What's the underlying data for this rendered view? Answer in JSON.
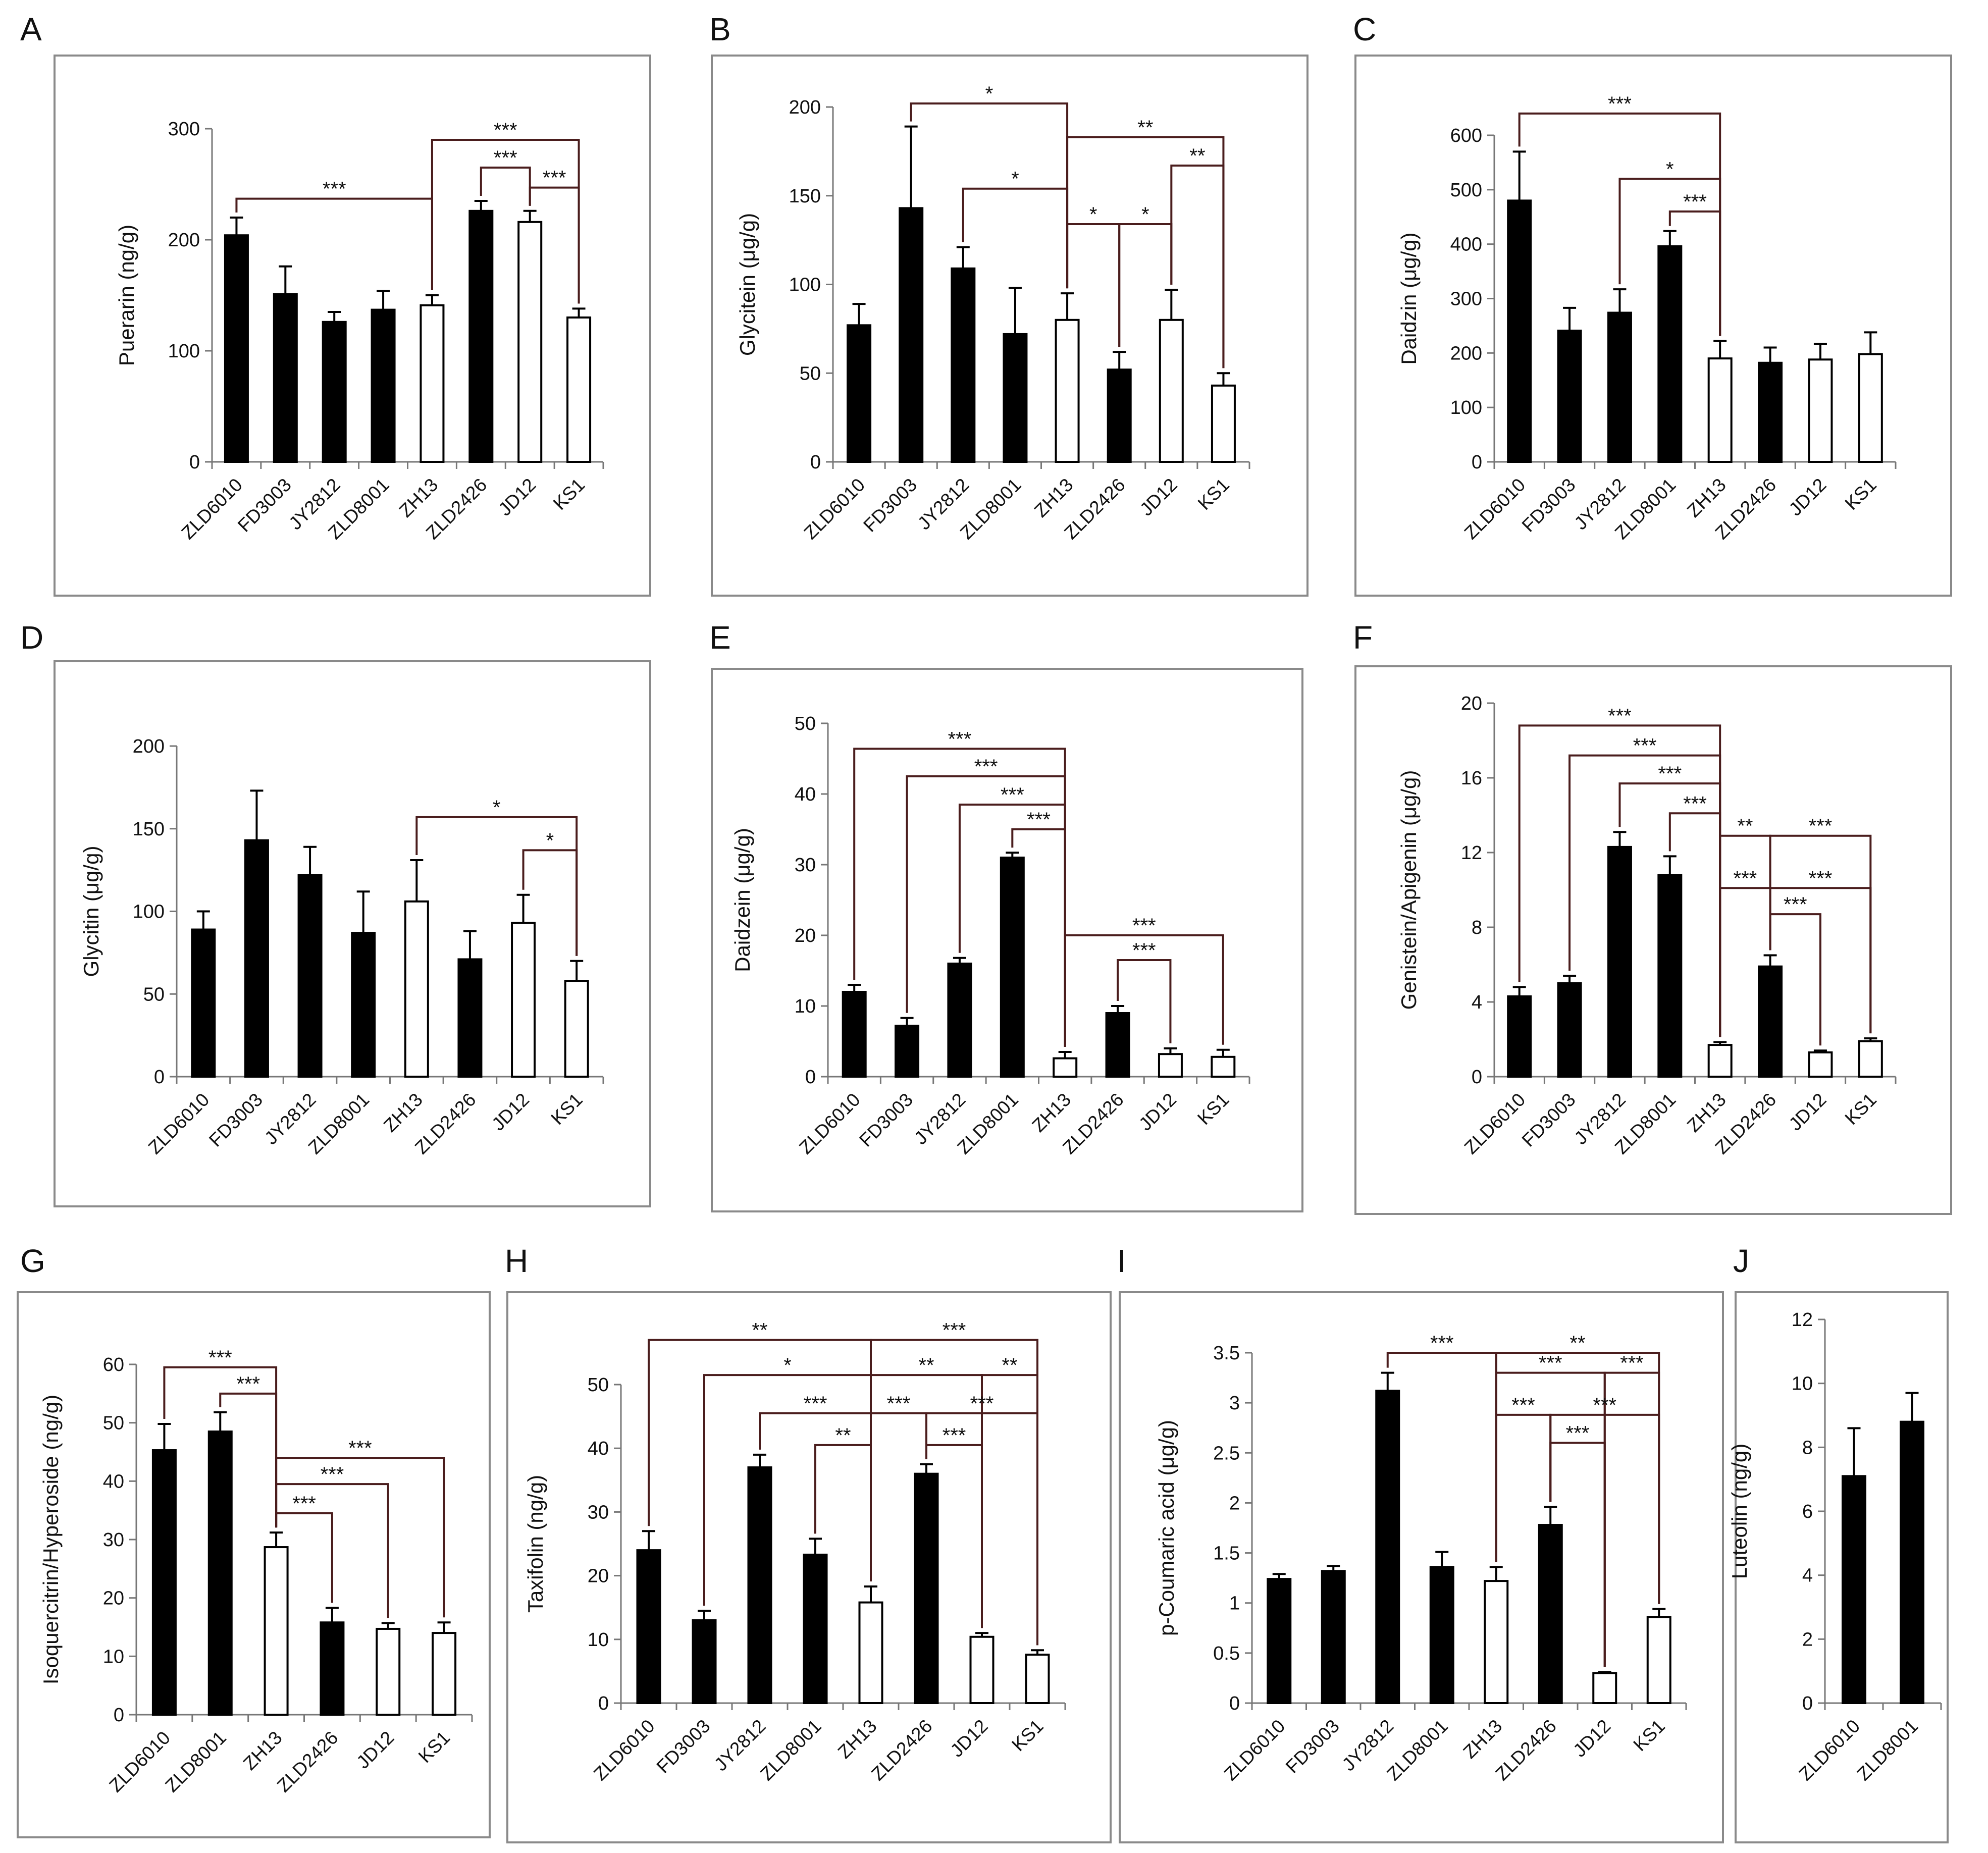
{
  "colors": {
    "filled": "#000000",
    "open": "#ffffff",
    "frame": "#8a8a8a",
    "bracket": "#4a1d1d"
  },
  "chart_data": [
    {
      "panel": "A",
      "type": "bar",
      "ylabel": "Puerarin (ng/g)",
      "ylim": [
        0,
        300
      ],
      "yticks": [
        0,
        100,
        200,
        300
      ],
      "categories": [
        "ZLD6010",
        "FD3003",
        "JY2812",
        "ZLD8001",
        "ZH13",
        "ZLD2426",
        "JD12",
        "KS1"
      ],
      "values": [
        204,
        151,
        126,
        137,
        141,
        226,
        216,
        130
      ],
      "errors": [
        16,
        25,
        9,
        17,
        9,
        9,
        10,
        8
      ],
      "filled": [
        true,
        true,
        true,
        true,
        false,
        true,
        false,
        false
      ],
      "annotations": [
        {
          "label": "***",
          "x1": 0,
          "x2": 4,
          "y": 237
        },
        {
          "label": "***",
          "x1": 4,
          "x2": 7,
          "y": 290
        },
        {
          "label": "***",
          "x1": 5,
          "x2": 6,
          "y": 265
        },
        {
          "label": "***",
          "x1": 6,
          "x2": 7,
          "y": 247
        }
      ]
    },
    {
      "panel": "B",
      "type": "bar",
      "ylabel": "Glycitein (μg/g)",
      "ylim": [
        0,
        200
      ],
      "yticks": [
        0,
        50,
        100,
        150,
        200
      ],
      "categories": [
        "ZLD6010",
        "FD3003",
        "JY2812",
        "ZLD8001",
        "ZH13",
        "ZLD2426",
        "JD12",
        "KS1"
      ],
      "values": [
        77,
        143,
        109,
        72,
        80,
        52,
        80,
        43
      ],
      "errors": [
        12,
        46,
        12,
        26,
        15,
        10,
        17,
        7
      ],
      "filled": [
        true,
        true,
        true,
        true,
        false,
        true,
        false,
        false
      ],
      "annotations": [
        {
          "label": "*",
          "x1": 1,
          "x2": 4,
          "y": 202
        },
        {
          "label": "**",
          "x1": 4,
          "x2": 7,
          "y": 183
        },
        {
          "label": "*",
          "x1": 2,
          "x2": 4,
          "y": 154
        },
        {
          "label": "**",
          "x1": 6,
          "x2": 7,
          "y": 167
        },
        {
          "label": "*",
          "x1": 4,
          "x2": 5,
          "y": 134
        },
        {
          "label": "*",
          "x1": 5,
          "x2": 6,
          "y": 134
        }
      ]
    },
    {
      "panel": "C",
      "type": "bar",
      "ylabel": "Daidzin (μg/g)",
      "ylim": [
        0,
        600
      ],
      "yticks": [
        0,
        100,
        200,
        300,
        400,
        500,
        600
      ],
      "categories": [
        "ZLD6010",
        "FD3003",
        "JY2812",
        "ZLD8001",
        "ZH13",
        "ZLD2426",
        "JD12",
        "KS1"
      ],
      "values": [
        480,
        241,
        274,
        396,
        190,
        182,
        188,
        198
      ],
      "errors": [
        90,
        42,
        43,
        28,
        32,
        28,
        29,
        40
      ],
      "filled": [
        true,
        true,
        true,
        true,
        false,
        true,
        false,
        false
      ],
      "annotations": [
        {
          "label": "***",
          "x1": 0,
          "x2": 4,
          "y": 640
        },
        {
          "label": "*",
          "x1": 2,
          "x2": 4,
          "y": 520
        },
        {
          "label": "***",
          "x1": 3,
          "x2": 4,
          "y": 460
        }
      ]
    },
    {
      "panel": "D",
      "type": "bar",
      "ylabel": "Glycitin (μg/g)",
      "ylim": [
        0,
        200
      ],
      "yticks": [
        0,
        50,
        100,
        150,
        200
      ],
      "categories": [
        "ZLD6010",
        "FD3003",
        "JY2812",
        "ZLD8001",
        "ZH13",
        "ZLD2426",
        "JD12",
        "KS1"
      ],
      "values": [
        89,
        143,
        122,
        87,
        106,
        71,
        93,
        58
      ],
      "errors": [
        11,
        30,
        17,
        25,
        25,
        17,
        17,
        12
      ],
      "filled": [
        true,
        true,
        true,
        true,
        false,
        true,
        false,
        false
      ],
      "annotations": [
        {
          "label": "*",
          "x1": 4,
          "x2": 7,
          "y": 157
        },
        {
          "label": "*",
          "x1": 6,
          "x2": 7,
          "y": 137
        }
      ]
    },
    {
      "panel": "E",
      "type": "bar",
      "ylabel": "Daidzein (μg/g)",
      "ylim": [
        0,
        50
      ],
      "yticks": [
        0,
        10,
        20,
        30,
        40,
        50
      ],
      "categories": [
        "ZLD6010",
        "FD3003",
        "JY2812",
        "ZLD8001",
        "ZH13",
        "ZLD2426",
        "JD12",
        "KS1"
      ],
      "values": [
        12,
        7.2,
        16,
        31,
        2.6,
        9,
        3.2,
        2.8
      ],
      "errors": [
        1,
        1.1,
        0.8,
        0.7,
        0.9,
        1,
        0.8,
        1
      ],
      "filled": [
        true,
        true,
        true,
        true,
        false,
        true,
        false,
        false
      ],
      "annotations": [
        {
          "label": "***",
          "x1": 0,
          "x2": 4,
          "y": 46.4
        },
        {
          "label": "***",
          "x1": 1,
          "x2": 4,
          "y": 42.5
        },
        {
          "label": "***",
          "x1": 2,
          "x2": 4,
          "y": 38.5
        },
        {
          "label": "***",
          "x1": 3,
          "x2": 4,
          "y": 35
        },
        {
          "label": "***",
          "x1": 4,
          "x2": 7,
          "y": 20
        },
        {
          "label": "***",
          "x1": 5,
          "x2": 6,
          "y": 16.5
        }
      ]
    },
    {
      "panel": "F",
      "type": "bar",
      "ylabel": "Genistein/Apigenin (μg/g)",
      "ylim": [
        0,
        20
      ],
      "yticks": [
        0,
        4,
        8,
        12,
        16,
        20
      ],
      "categories": [
        "ZLD6010",
        "FD3003",
        "JY2812",
        "ZLD8001",
        "ZH13",
        "ZLD2426",
        "JD12",
        "KS1"
      ],
      "values": [
        4.3,
        5,
        12.3,
        10.8,
        1.7,
        5.9,
        1.3,
        1.9
      ],
      "errors": [
        0.5,
        0.4,
        0.8,
        1,
        0.15,
        0.6,
        0.1,
        0.15
      ],
      "filled": [
        true,
        true,
        true,
        true,
        false,
        true,
        false,
        false
      ],
      "annotations": [
        {
          "label": "***",
          "x1": 0,
          "x2": 4,
          "y": 18.8
        },
        {
          "label": "***",
          "x1": 1,
          "x2": 4,
          "y": 17.2
        },
        {
          "label": "***",
          "x1": 2,
          "x2": 4,
          "y": 15.7
        },
        {
          "label": "***",
          "x1": 3,
          "x2": 4,
          "y": 14.1
        },
        {
          "label": "**",
          "x1": 4,
          "x2": 5,
          "y": 12.9
        },
        {
          "label": "***",
          "x1": 5,
          "x2": 7,
          "y": 12.9
        },
        {
          "label": "***",
          "x1": 4,
          "x2": 5,
          "y": 10.1
        },
        {
          "label": "***",
          "x1": 5,
          "x2": 7,
          "y": 10.1
        },
        {
          "label": "***",
          "x1": 5,
          "x2": 6,
          "y": 8.7
        }
      ]
    },
    {
      "panel": "G",
      "type": "bar",
      "ylabel": "Isoquercitrin/Hyperoside (ng/g)",
      "ylim": [
        0,
        60
      ],
      "yticks": [
        0,
        10,
        20,
        30,
        40,
        50,
        60
      ],
      "categories": [
        "ZLD6010",
        "ZLD8001",
        "ZH13",
        "ZLD2426",
        "JD12",
        "KS1"
      ],
      "values": [
        45.3,
        48.5,
        28.7,
        15.8,
        14.7,
        14
      ],
      "errors": [
        4.5,
        3.3,
        2.5,
        2.5,
        1,
        1.8
      ],
      "filled": [
        true,
        true,
        false,
        true,
        false,
        false
      ],
      "annotations": [
        {
          "label": "***",
          "x1": 0,
          "x2": 2,
          "y": 59.5
        },
        {
          "label": "***",
          "x1": 1,
          "x2": 2,
          "y": 55
        },
        {
          "label": "***",
          "x1": 2,
          "x2": 5,
          "y": 44
        },
        {
          "label": "***",
          "x1": 2,
          "x2": 4,
          "y": 39.5
        },
        {
          "label": "***",
          "x1": 2,
          "x2": 3,
          "y": 34.5
        }
      ]
    },
    {
      "panel": "H",
      "type": "bar",
      "ylabel": "Taxifolin (ng/g)",
      "ylim": [
        0,
        50
      ],
      "yticks": [
        0,
        10,
        20,
        30,
        40,
        50
      ],
      "categories": [
        "ZLD6010",
        "FD3003",
        "JY2812",
        "ZLD8001",
        "ZH13",
        "ZLD2426",
        "JD12",
        "KS1"
      ],
      "values": [
        24,
        13,
        37,
        23.3,
        15.8,
        36,
        10.4,
        7.6
      ],
      "errors": [
        3,
        1.5,
        2,
        2.5,
        2.5,
        1.5,
        0.6,
        0.7
      ],
      "filled": [
        true,
        true,
        true,
        true,
        false,
        true,
        false,
        false
      ],
      "annotations": [
        {
          "label": "**",
          "x1": 0,
          "x2": 4,
          "y": 57
        },
        {
          "label": "***",
          "x1": 4,
          "x2": 7,
          "y": 57
        },
        {
          "label": "*",
          "x1": 1,
          "x2": 4,
          "y": 51.5
        },
        {
          "label": "**",
          "x1": 4,
          "x2": 6,
          "y": 51.5
        },
        {
          "label": "**",
          "x1": 6,
          "x2": 7,
          "y": 51.5
        },
        {
          "label": "***",
          "x1": 2,
          "x2": 4,
          "y": 45.5
        },
        {
          "label": "***",
          "x1": 4,
          "x2": 5,
          "y": 45.5
        },
        {
          "label": "***",
          "x1": 5,
          "x2": 7,
          "y": 45.5
        },
        {
          "label": "**",
          "x1": 3,
          "x2": 4,
          "y": 40.5
        },
        {
          "label": "***",
          "x1": 5,
          "x2": 6,
          "y": 40.5
        }
      ]
    },
    {
      "panel": "I",
      "type": "bar",
      "ylabel": "p-Coumaric acid (μg/g)",
      "ylim": [
        0,
        3.5
      ],
      "yticks": [
        0,
        0.5,
        1,
        1.5,
        2,
        2.5,
        3,
        3.5
      ],
      "categories": [
        "ZLD6010",
        "FD3003",
        "JY2812",
        "ZLD8001",
        "ZH13",
        "ZLD2426",
        "JD12",
        "KS1"
      ],
      "values": [
        1.24,
        1.32,
        3.12,
        1.36,
        1.22,
        1.78,
        0.3,
        0.86
      ],
      "errors": [
        0.05,
        0.05,
        0.18,
        0.15,
        0.14,
        0.18,
        0.01,
        0.08
      ],
      "filled": [
        true,
        true,
        true,
        true,
        false,
        true,
        false,
        false
      ],
      "annotations": [
        {
          "label": "***",
          "x1": 2,
          "x2": 4,
          "y": 3.5
        },
        {
          "label": "**",
          "x1": 4,
          "x2": 7,
          "y": 3.5
        },
        {
          "label": "***",
          "x1": 4,
          "x2": 6,
          "y": 3.3
        },
        {
          "label": "***",
          "x1": 6,
          "x2": 7,
          "y": 3.3
        },
        {
          "label": "***",
          "x1": 4,
          "x2": 5,
          "y": 2.88
        },
        {
          "label": "***",
          "x1": 5,
          "x2": 7,
          "y": 2.88
        },
        {
          "label": "***",
          "x1": 5,
          "x2": 6,
          "y": 2.6
        }
      ]
    },
    {
      "panel": "J",
      "type": "bar",
      "ylabel": "Luteolin (ng/g)",
      "ylim": [
        0,
        12
      ],
      "yticks": [
        0,
        2,
        4,
        6,
        8,
        10,
        12
      ],
      "categories": [
        "ZLD6010",
        "ZLD8001"
      ],
      "values": [
        7.1,
        8.8
      ],
      "errors": [
        1.5,
        0.9
      ],
      "filled": [
        true,
        true
      ],
      "annotations": []
    }
  ]
}
